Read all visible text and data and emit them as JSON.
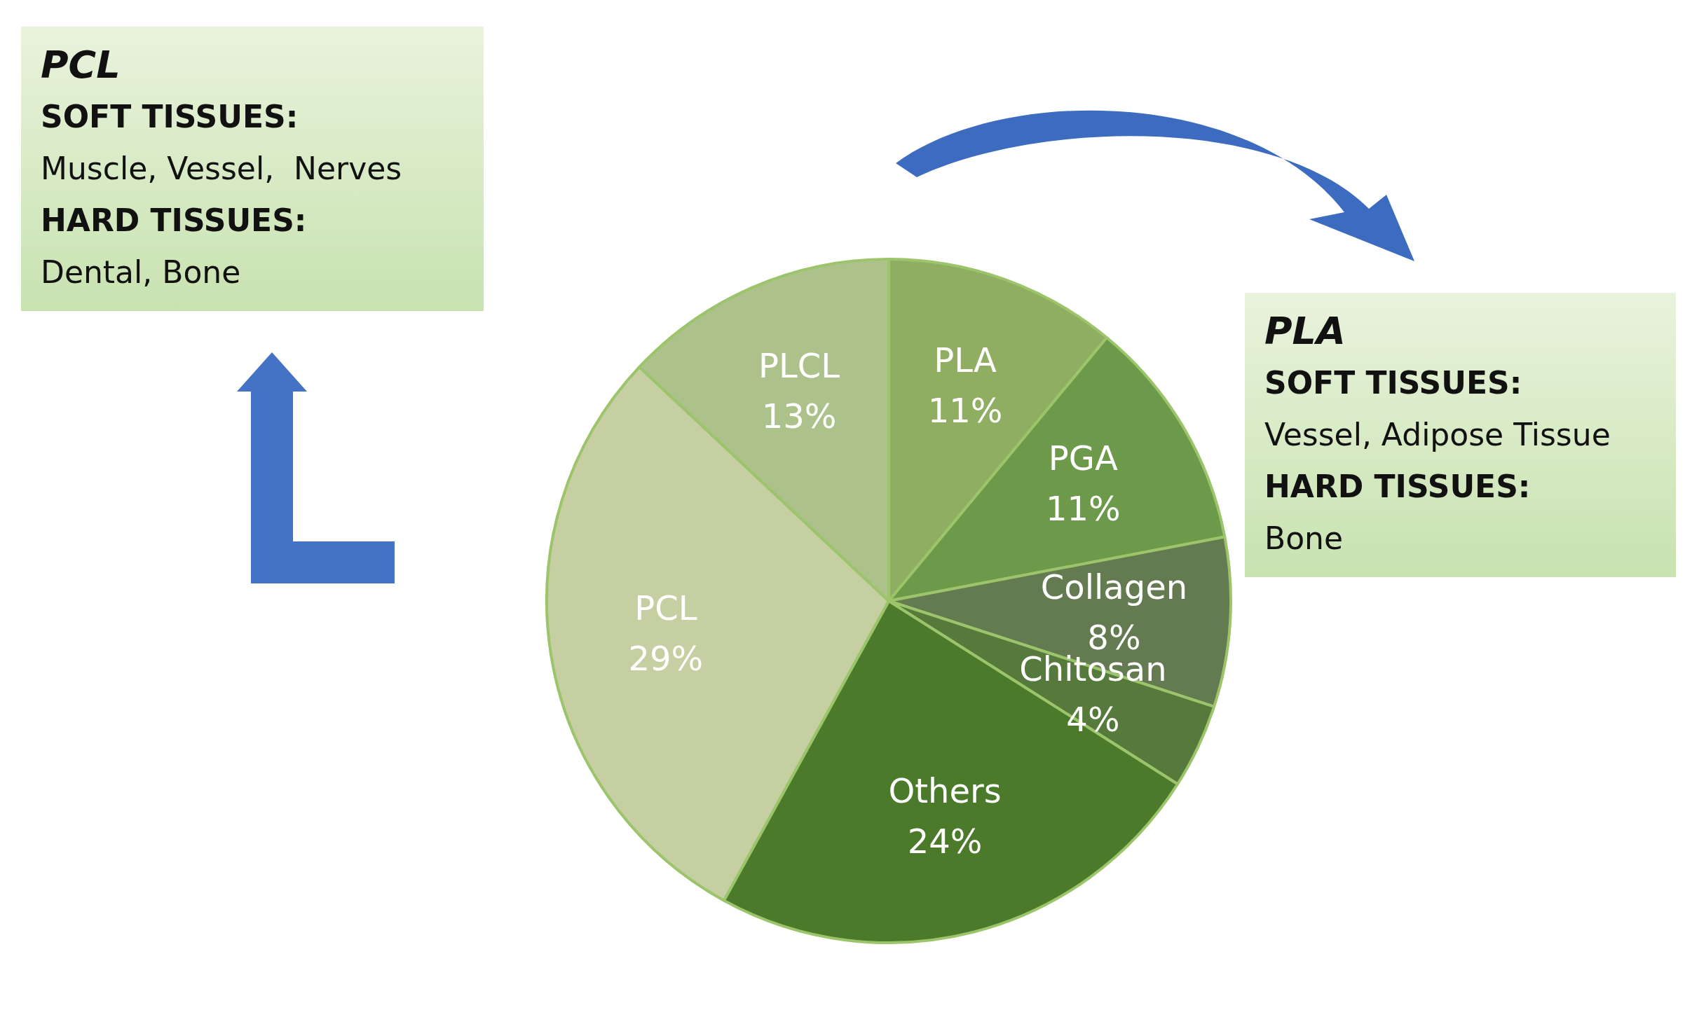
{
  "chart_data": {
    "type": "pie",
    "categories": [
      "PLA",
      "PGA",
      "Collagen",
      "Chitosan",
      "Others",
      "PCL",
      "PLCL"
    ],
    "values": [
      11,
      11,
      8,
      4,
      24,
      29,
      13
    ],
    "colors": [
      "#8fae62",
      "#6d9a4a",
      "#647a50",
      "#567a3c",
      "#4a7a2a",
      "#c6cfa2",
      "#adc28a"
    ],
    "value_labels": [
      "11%",
      "11%",
      "8%",
      "4%",
      "24%",
      "29%",
      "13%"
    ],
    "legend": false,
    "annotations": [
      "PCL\nSOFT TISSUES:\nMuscle, Vessel,  Nerves\nHARD TISSUES:\nDental, Bone",
      "PLA\nSOFT TISSUES:\nVessel, Adipose Tissue\nHARD TISSUES:\nBone"
    ]
  }
}
